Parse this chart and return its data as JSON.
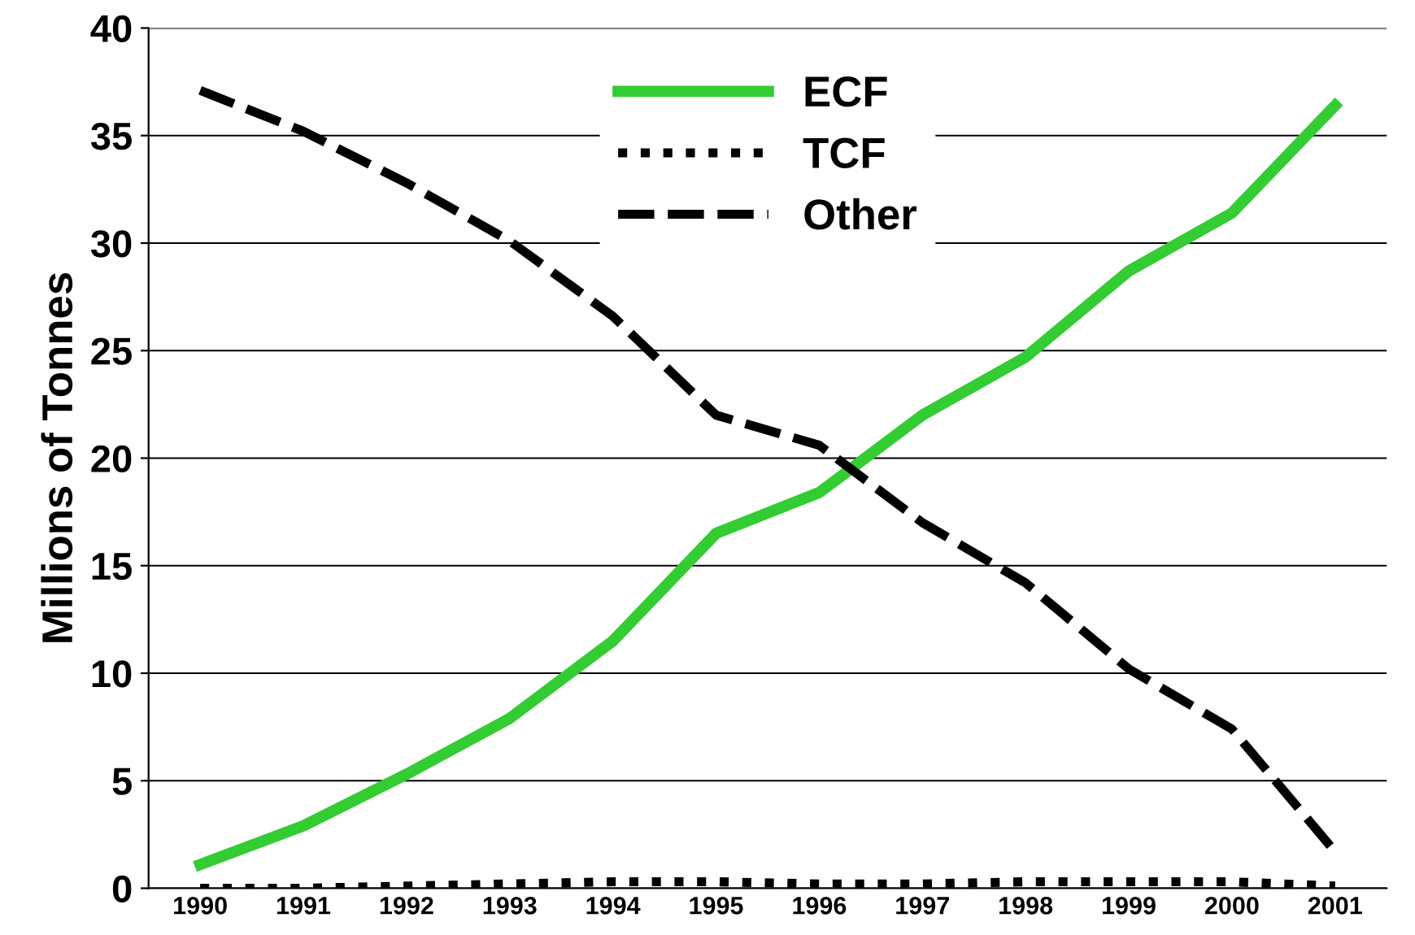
{
  "chart_data": {
    "type": "line",
    "ylabel": "Millions of Tonnes",
    "categories": [
      "1990",
      "1991",
      "1992",
      "1993",
      "1994",
      "1995",
      "1996",
      "1997",
      "1998",
      "1999",
      "2000",
      "2001"
    ],
    "series": [
      {
        "name": "ECF",
        "color": "#33cc33",
        "line_style": "solid",
        "values": [
          1.1,
          2.9,
          5.3,
          7.9,
          11.5,
          16.5,
          18.4,
          22.0,
          24.7,
          28.7,
          31.4,
          36.4
        ]
      },
      {
        "name": "TCF",
        "color": "#000000",
        "line_style": "dotted",
        "values": [
          0,
          0,
          0.1,
          0.2,
          0.3,
          0.3,
          0.2,
          0.2,
          0.3,
          0.3,
          0.3,
          0.1
        ]
      },
      {
        "name": "Other",
        "color": "#000000",
        "line_style": "dashed",
        "values": [
          37.1,
          35.2,
          32.8,
          30.1,
          26.6,
          22.0,
          20.6,
          17.0,
          14.2,
          10.2,
          7.4,
          1.7
        ]
      }
    ],
    "ylim": [
      0,
      40
    ],
    "yticks": [
      0,
      5,
      10,
      15,
      20,
      25,
      30,
      35,
      40
    ],
    "grid": "y",
    "legend": "top",
    "marker": "none"
  }
}
